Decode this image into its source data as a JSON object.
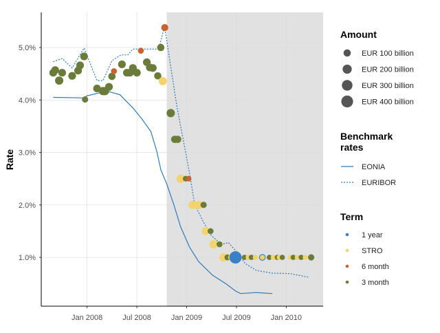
{
  "chart_data": {
    "type": "scatter",
    "ylabel": "Rate",
    "xlabel": "",
    "x_ticks": [
      {
        "value": 2008.0,
        "label": "Jan 2008"
      },
      {
        "value": 2008.5,
        "label": "Jul 2008"
      },
      {
        "value": 2009.0,
        "label": "Jan 2009"
      },
      {
        "value": 2009.5,
        "label": "Jul 2009"
      },
      {
        "value": 2010.0,
        "label": "Jan 2010"
      }
    ],
    "y_ticks": [
      {
        "value": 1.0,
        "label": "1.0%"
      },
      {
        "value": 2.0,
        "label": "2.0%"
      },
      {
        "value": 3.0,
        "label": "3.0%"
      },
      {
        "value": 4.0,
        "label": "4.0%"
      },
      {
        "value": 5.0,
        "label": "5.0%"
      }
    ],
    "xlim": [
      2007.54,
      2010.37
    ],
    "ylim": [
      0.07,
      5.67
    ],
    "grid": true,
    "shaded_region": {
      "from": 2008.8,
      "to": 2010.37,
      "color": "#e0e1e0"
    },
    "legend_placement": "right",
    "legends": {
      "amount": {
        "title": "Amount",
        "entries": [
          {
            "label": "EUR 100 billion",
            "value": 100
          },
          {
            "label": "EUR 200 billion",
            "value": 200
          },
          {
            "label": "EUR 300 billion",
            "value": 300
          },
          {
            "label": "EUR 400 billion",
            "value": 400
          }
        ],
        "color": "#555555"
      },
      "benchmark": {
        "title_line1": "Benchmark",
        "title_line2": "rates",
        "entries": [
          {
            "label": "EONIA",
            "style": "solid"
          },
          {
            "label": "EURIBOR",
            "style": "dotted"
          }
        ]
      },
      "term": {
        "title": "Term",
        "entries": [
          {
            "label": "1 year",
            "key": "1y"
          },
          {
            "label": "STRO",
            "key": "stro"
          },
          {
            "label": "6 month",
            "key": "6m"
          },
          {
            "label": "3 month",
            "key": "3m"
          }
        ]
      }
    },
    "term_colors": {
      "1y": "#3a80c4",
      "stro": "#f3d36b",
      "6m": "#c8622e",
      "3m": "#6b7b3a"
    },
    "line_color": "#2e7ab8",
    "lines": {
      "EONIA": [
        [
          2007.66,
          4.05
        ],
        [
          2007.97,
          4.04
        ],
        [
          2008.0,
          4.08
        ],
        [
          2008.2,
          4.17
        ],
        [
          2008.33,
          4.1
        ],
        [
          2008.46,
          3.85
        ],
        [
          2008.55,
          3.64
        ],
        [
          2008.64,
          3.4
        ],
        [
          2008.7,
          3.02
        ],
        [
          2008.74,
          2.67
        ],
        [
          2008.8,
          2.4
        ],
        [
          2008.87,
          2.01
        ],
        [
          2008.94,
          1.58
        ],
        [
          2009.03,
          1.19
        ],
        [
          2009.12,
          0.92
        ],
        [
          2009.26,
          0.66
        ],
        [
          2009.4,
          0.49
        ],
        [
          2009.49,
          0.36
        ],
        [
          2009.54,
          0.31
        ],
        [
          2009.7,
          0.33
        ],
        [
          2009.86,
          0.31
        ]
      ],
      "EURIBOR": [
        [
          2007.66,
          4.73
        ],
        [
          2007.75,
          4.79
        ],
        [
          2007.85,
          4.61
        ],
        [
          2007.97,
          4.99
        ],
        [
          2008.1,
          4.37
        ],
        [
          2008.16,
          4.37
        ],
        [
          2008.25,
          4.75
        ],
        [
          2008.34,
          4.86
        ],
        [
          2008.41,
          4.86
        ],
        [
          2008.46,
          4.97
        ],
        [
          2008.72,
          4.97
        ],
        [
          2008.76,
          5.27
        ],
        [
          2008.78,
          5.38
        ],
        [
          2008.9,
          3.9
        ],
        [
          2009.03,
          2.59
        ],
        [
          2009.08,
          2.01
        ],
        [
          2009.17,
          1.67
        ],
        [
          2009.25,
          1.41
        ],
        [
          2009.35,
          1.25
        ],
        [
          2009.42,
          1.28
        ],
        [
          2009.48,
          1.15
        ],
        [
          2009.59,
          0.88
        ],
        [
          2009.7,
          0.75
        ],
        [
          2009.86,
          0.7
        ],
        [
          2010.04,
          0.69
        ],
        [
          2010.23,
          0.62
        ]
      ]
    },
    "points": [
      [
        2007.66,
        4.52,
        "3m",
        120
      ],
      [
        2007.68,
        4.57,
        "3m",
        120
      ],
      [
        2007.72,
        4.37,
        "3m",
        150
      ],
      [
        2007.75,
        4.52,
        "3m",
        120
      ],
      [
        2007.85,
        4.46,
        "3m",
        120
      ],
      [
        2007.91,
        4.56,
        "3m",
        120
      ],
      [
        2007.93,
        4.66,
        "3m",
        120
      ],
      [
        2007.97,
        4.83,
        "3m",
        120
      ],
      [
        2007.98,
        4.01,
        "3m",
        60
      ],
      [
        2008.1,
        4.22,
        "3m",
        120
      ],
      [
        2008.16,
        4.17,
        "3m",
        150
      ],
      [
        2008.18,
        4.17,
        "3m",
        150
      ],
      [
        2008.22,
        4.25,
        "3m",
        120
      ],
      [
        2008.25,
        4.45,
        "3m",
        100
      ],
      [
        2008.27,
        4.55,
        "6m",
        50
      ],
      [
        2008.35,
        4.68,
        "3m",
        120
      ],
      [
        2008.4,
        4.52,
        "3m",
        120
      ],
      [
        2008.43,
        4.52,
        "3m",
        120
      ],
      [
        2008.46,
        4.61,
        "3m",
        120
      ],
      [
        2008.5,
        4.52,
        "3m",
        120
      ],
      [
        2008.54,
        4.94,
        "6m",
        50
      ],
      [
        2008.6,
        4.72,
        "3m",
        120
      ],
      [
        2008.63,
        4.62,
        "3m",
        120
      ],
      [
        2008.66,
        4.61,
        "3m",
        120
      ],
      [
        2008.71,
        4.46,
        "3m",
        100
      ],
      [
        2008.74,
        5.0,
        "3m",
        100
      ],
      [
        2008.76,
        4.36,
        "stro",
        150
      ],
      [
        2008.78,
        5.38,
        "6m",
        90
      ],
      [
        2008.84,
        3.75,
        "3m",
        150
      ],
      [
        2008.88,
        3.25,
        "3m",
        100
      ],
      [
        2008.91,
        3.25,
        "3m",
        100
      ],
      [
        2008.94,
        2.5,
        "stro",
        150
      ],
      [
        2008.99,
        2.5,
        "3m",
        40
      ],
      [
        2009.02,
        2.5,
        "6m",
        40
      ],
      [
        2009.06,
        2.0,
        "stro",
        150
      ],
      [
        2009.12,
        2.0,
        "stro",
        150
      ],
      [
        2009.17,
        2.0,
        "3m",
        60
      ],
      [
        2009.19,
        1.5,
        "stro",
        120
      ],
      [
        2009.24,
        1.5,
        "3m",
        50
      ],
      [
        2009.27,
        1.25,
        "stro",
        150
      ],
      [
        2009.33,
        1.25,
        "3m",
        50
      ],
      [
        2009.37,
        1.0,
        "stro",
        150
      ],
      [
        2009.41,
        1.0,
        "3m",
        50
      ],
      [
        2009.45,
        1.0,
        "stro",
        80
      ],
      [
        2009.49,
        1.0,
        "1y",
        442
      ],
      [
        2009.58,
        1.0,
        "3m",
        30
      ],
      [
        2009.62,
        1.0,
        "stro",
        40
      ],
      [
        2009.65,
        1.0,
        "3m",
        30
      ],
      [
        2009.69,
        1.0,
        "stro",
        30
      ],
      [
        2009.76,
        1.0,
        "1y",
        75
      ],
      [
        2009.76,
        1.0,
        "stro",
        25
      ],
      [
        2009.83,
        1.0,
        "3m",
        30
      ],
      [
        2009.87,
        1.0,
        "stro",
        30
      ],
      [
        2009.91,
        1.0,
        "3m",
        30
      ],
      [
        2009.93,
        1.0,
        "stro",
        30
      ],
      [
        2009.96,
        1.0,
        "3m",
        30
      ],
      [
        2010.04,
        1.0,
        "stro",
        25
      ],
      [
        2010.07,
        1.0,
        "3m",
        30
      ],
      [
        2010.11,
        1.0,
        "stro",
        25
      ],
      [
        2010.15,
        1.0,
        "3m",
        30
      ],
      [
        2010.19,
        1.0,
        "stro",
        25
      ],
      [
        2010.25,
        1.0,
        "3m",
        60
      ]
    ]
  }
}
